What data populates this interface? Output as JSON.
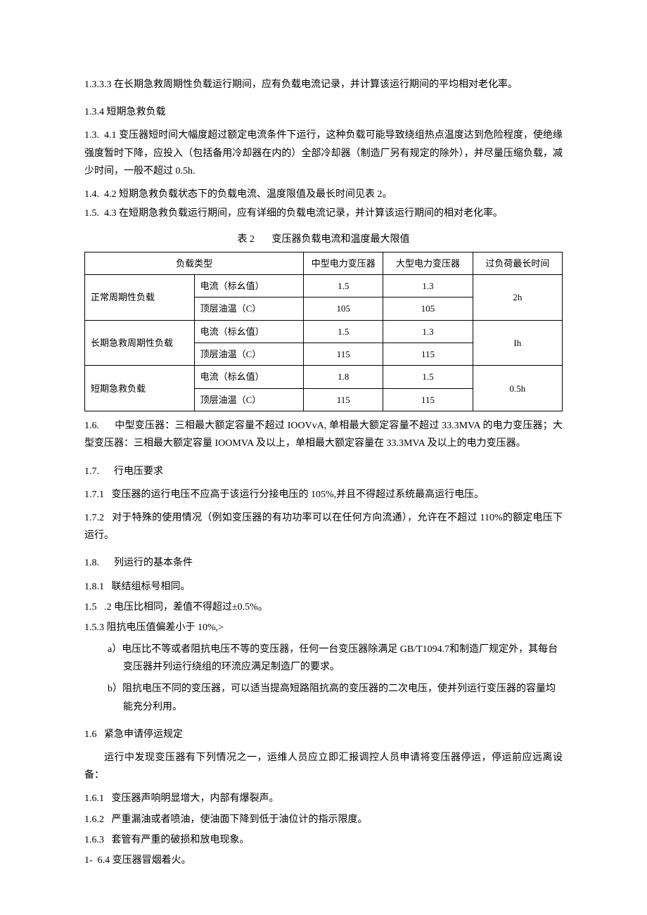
{
  "p1333": "1.3.3.3 在长期急救周期性负载运行期间，应有负载电流记录，并计算该运行期间的平均相对老化率。",
  "p134": "1.3.4 短期急救负载",
  "p1341": "1.3.  4.1 变压器短时间大幅度超过额定电流条件下运行，这种负载可能导致绕组热点温度达到危险程度，使绝缘强度暂时下降，应投入（包括备用冷却器在内的）全部冷却器（制造厂另有规定的除外），并尽量压缩负载，减少时间，一般不超过 0.5h.",
  "p1442": "1.4.  4.2 短期急救负载状态下的负载电流、温度限值及最长时间见表 2。",
  "p1543": "1.5.  4.3 在短期急救负载运行期间，应有详细的负载电流记录，并计算该运行期间的相对老化率。",
  "tableCaption": "表 2       变压器负载电流和温度最大限值",
  "th1": "负载类型",
  "th2": "中型电力变压器",
  "th3": "大型电力变压器",
  "th4": "过负荷最长时间",
  "rows": [
    {
      "type": "正常周期性负载",
      "param1": "电流（标幺值）",
      "v1a": "1.5",
      "v1b": "1.3",
      "param2": "顶层油温（C）",
      "v2a": "105",
      "v2b": "105",
      "time": "2h"
    },
    {
      "type": "长期急救周期性负载",
      "param1": "电流（标幺值）",
      "v1a": "1.5",
      "v1b": "1.3",
      "param2": "顶层油温（C）",
      "v2a": "115",
      "v2b": "115",
      "time": "Ih"
    },
    {
      "type": "短期急救负载",
      "param1": "电流（标幺值）",
      "v1a": "1.8",
      "v1b": "1.5",
      "param2": "顶层油温（C）",
      "v2a": "115",
      "v2b": "115",
      "time": "0.5h"
    }
  ],
  "p16": "1.6.      中型变压器：三相最大额定容量不超过 IOOVvA, 单相最大额定容量不超过 33.3MVA 的电力变压器；大型变压器：三相最大额定容量 IOOMVA 及以上，单相最大额定容量在 33.3MVA 及以上的电力变压器。",
  "p17": "1.7.      行电压要求",
  "p171": "1.7.1   变压器的运行电压不应高于该运行分接电压的 105%,并且不得超过系统最高运行电压。",
  "p172": "1.7.2   对于特殊的使用情况（例如变压器的有功功率可以在任何方向流通），允许在不超过 110%的额定电压下运行。",
  "p18": "1.8.      列运行的基本条件",
  "p181": "1.8.1   联结组标号相同。",
  "p152": "1.5   .2 电压比相同，差值不得超过±0.5%。",
  "p153": "1.5.3 阻抗电压值偏差小于 10%,>",
  "pa": "a）电压比不等或者阻抗电压不等的变压器，任何一台变压器除满足 GB/T1094.7和制造厂规定外，其每台变压器并列运行绕组的环流应满足制造厂的要求。",
  "pb": "b）阻抗电压不同的变压器，可以适当提高短路阻抗高的变压器的二次电压，使并列运行变压器的容量均能充分利用。",
  "p16b": "1.6   紧急申请停运规定",
  "p16c": "运行中发现变压器有下列情况之一，运维人员应立即汇报调控人员申请将变压器停运，停运前应远离设备：",
  "p161": "1.6.1   变压器声响明显增大，内部有爆裂声。",
  "p162": "1.6.2   严重漏油或者喷油，使油面下降到低于油位计的指示限度。",
  "p163": "1.6.3   套管有严重的破损和放电现象。",
  "p164": "1-  6.4 变压器冒烟着火。"
}
